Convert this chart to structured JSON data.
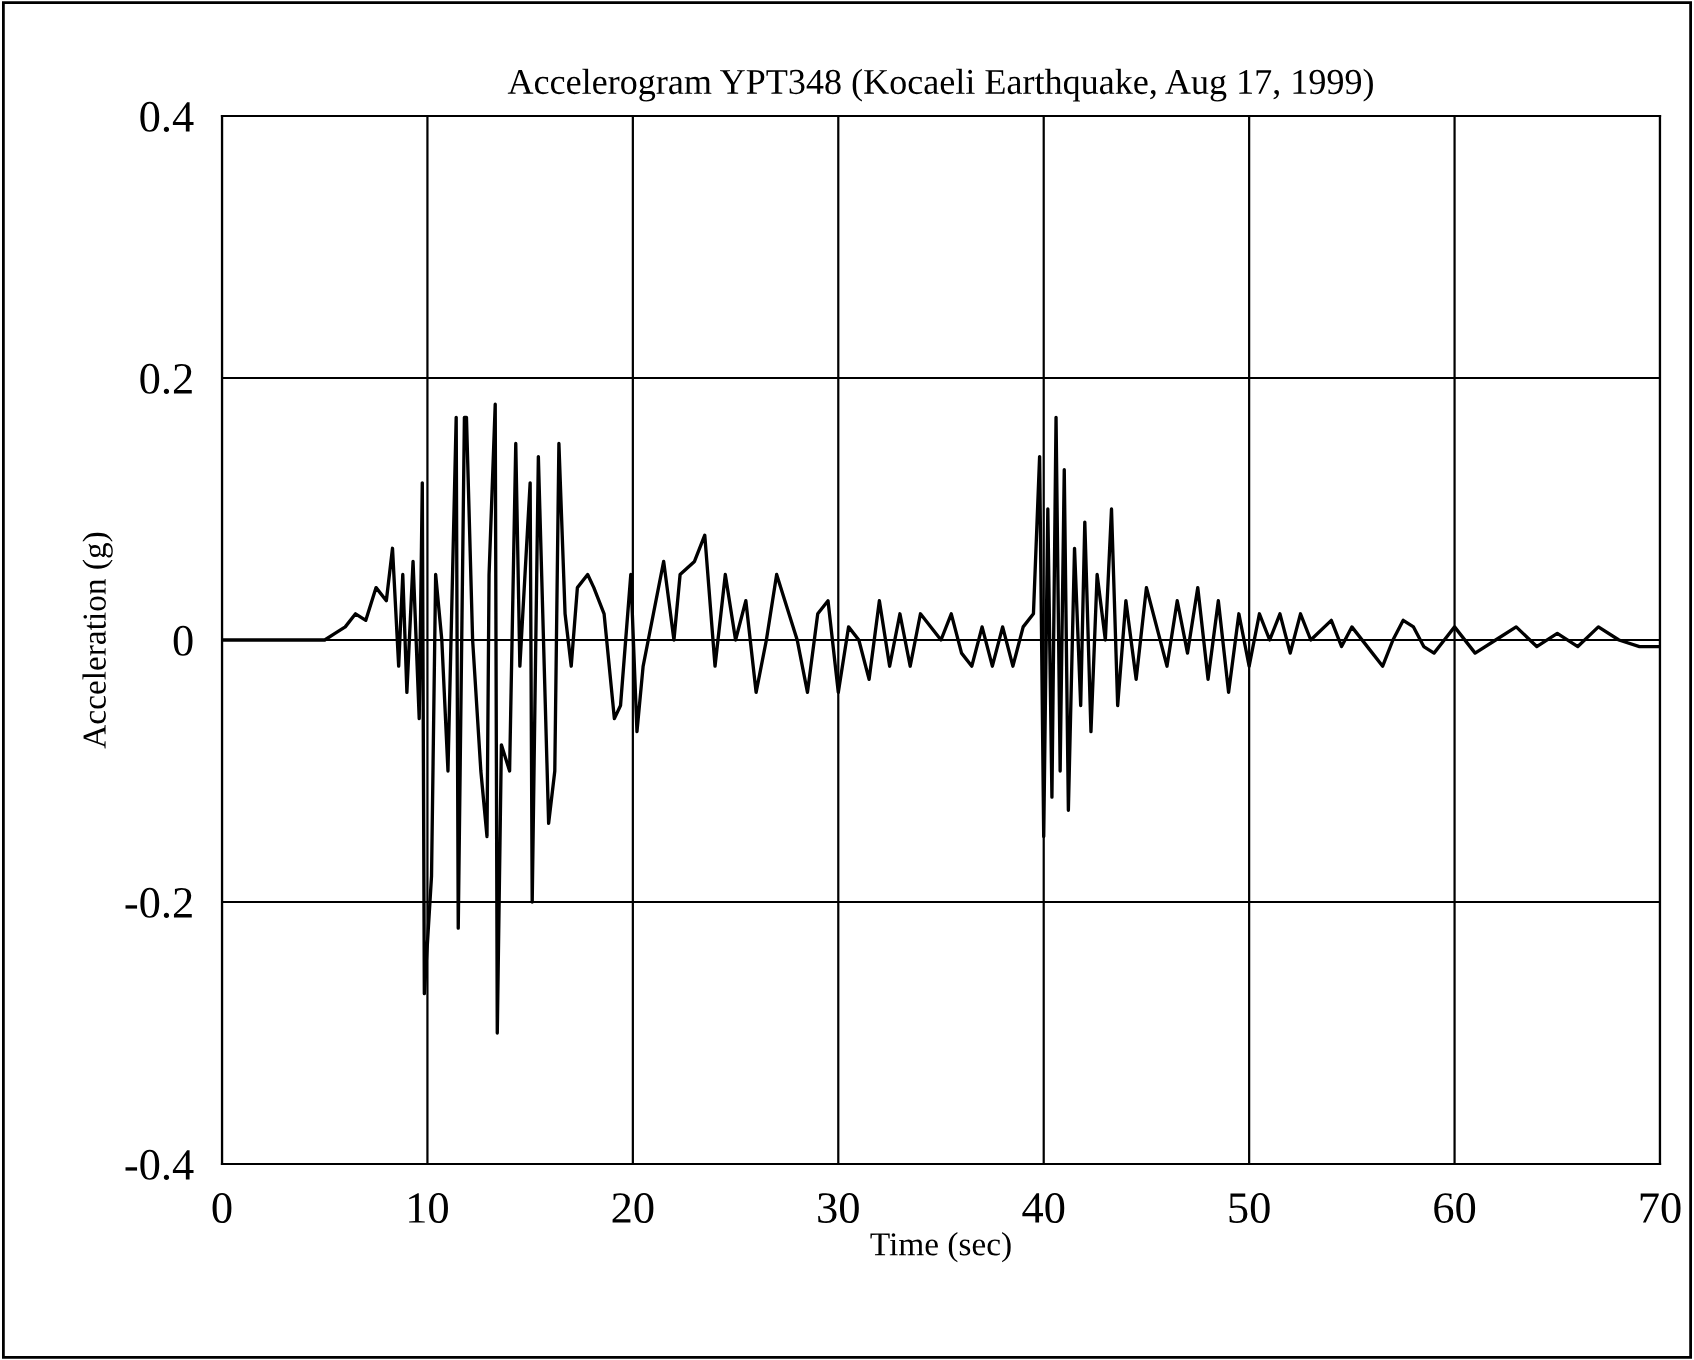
{
  "chart_data": {
    "type": "line",
    "title": "Accelerogram YPT348 (Kocaeli Earthquake, Aug 17, 1999)",
    "xlabel": "Time (sec)",
    "ylabel": "Acceleration (g)",
    "xlim": [
      0,
      70
    ],
    "ylim": [
      -0.4,
      0.4
    ],
    "xticks": [
      0,
      10,
      20,
      30,
      40,
      50,
      60,
      70
    ],
    "yticks": [
      -0.4,
      -0.2,
      0,
      0.2,
      0.4
    ],
    "grid": true,
    "legend": false,
    "marker": "none",
    "line_style": "solid",
    "series": [
      {
        "color": "#000000",
        "x": [
          0,
          5,
          5.5,
          6,
          6.5,
          7,
          7.5,
          8,
          8.3,
          8.6,
          8.8,
          9.0,
          9.3,
          9.6,
          9.75,
          9.85,
          10.2,
          10.4,
          10.7,
          11.0,
          11.4,
          11.5,
          11.8,
          11.9,
          12.2,
          12.6,
          12.9,
          13.0,
          13.3,
          13.4,
          13.6,
          14.0,
          14.3,
          14.5,
          15.0,
          15.1,
          15.4,
          15.9,
          16.2,
          16.4,
          16.7,
          17.0,
          17.3,
          17.8,
          18.1,
          18.6,
          19.1,
          19.4,
          19.9,
          20.2,
          20.5,
          21,
          21.5,
          22,
          22.3,
          23,
          23.5,
          24,
          24.5,
          25,
          25.5,
          26,
          26.5,
          27,
          27.4,
          28,
          28.5,
          29,
          29.5,
          30,
          30.5,
          31,
          31.5,
          32,
          32.5,
          33,
          33.5,
          34,
          35,
          35.5,
          36,
          36.5,
          37,
          37.5,
          38,
          38.5,
          39,
          39.5,
          39.8,
          40.0,
          40.2,
          40.4,
          40.6,
          40.8,
          41.0,
          41.2,
          41.5,
          41.8,
          42.0,
          42.3,
          42.6,
          43.0,
          43.3,
          43.6,
          44,
          44.5,
          45,
          45.5,
          46,
          46.5,
          47,
          47.5,
          48,
          48.5,
          49,
          49.5,
          50,
          50.5,
          51,
          51.5,
          52,
          52.5,
          53,
          54,
          54.5,
          55,
          56,
          56.5,
          57,
          57.5,
          58,
          58.5,
          59,
          59.5,
          60,
          61,
          62,
          63,
          64,
          65,
          66,
          67,
          68,
          69,
          70
        ],
        "values": [
          0,
          0,
          0.005,
          0.01,
          0.02,
          0.015,
          0.04,
          0.03,
          0.07,
          -0.02,
          0.05,
          -0.04,
          0.06,
          -0.06,
          0.12,
          -0.27,
          -0.18,
          0.05,
          0.0,
          -0.1,
          0.17,
          -0.22,
          0.17,
          0.17,
          0.0,
          -0.1,
          -0.15,
          0.05,
          0.18,
          -0.3,
          -0.08,
          -0.1,
          0.15,
          -0.02,
          0.12,
          -0.2,
          0.14,
          -0.14,
          -0.1,
          0.15,
          0.02,
          -0.02,
          0.04,
          0.05,
          0.04,
          0.02,
          -0.06,
          -0.05,
          0.05,
          -0.07,
          -0.02,
          0.02,
          0.06,
          0.0,
          0.05,
          0.06,
          0.08,
          -0.02,
          0.05,
          0.0,
          0.03,
          -0.04,
          0.0,
          0.05,
          0.03,
          0.0,
          -0.04,
          0.02,
          0.03,
          -0.04,
          0.01,
          0.0,
          -0.03,
          0.03,
          -0.02,
          0.02,
          -0.02,
          0.02,
          0.0,
          0.02,
          -0.01,
          -0.02,
          0.01,
          -0.02,
          0.01,
          -0.02,
          0.01,
          0.02,
          0.14,
          -0.15,
          0.1,
          -0.12,
          0.17,
          -0.1,
          0.13,
          -0.13,
          0.07,
          -0.05,
          0.09,
          -0.07,
          0.05,
          0.0,
          0.1,
          -0.05,
          0.03,
          -0.03,
          0.04,
          0.01,
          -0.02,
          0.03,
          -0.01,
          0.04,
          -0.03,
          0.03,
          -0.04,
          0.02,
          -0.02,
          0.02,
          0.0,
          0.02,
          -0.01,
          0.02,
          0.0,
          0.015,
          -0.005,
          0.01,
          -0.01,
          -0.02,
          0.0,
          0.015,
          0.01,
          -0.005,
          -0.01,
          0.0,
          0.01,
          -0.01,
          0.0,
          0.01,
          -0.005,
          0.005,
          -0.005,
          0.01,
          0.0,
          -0.005,
          -0.005
        ]
      }
    ]
  }
}
